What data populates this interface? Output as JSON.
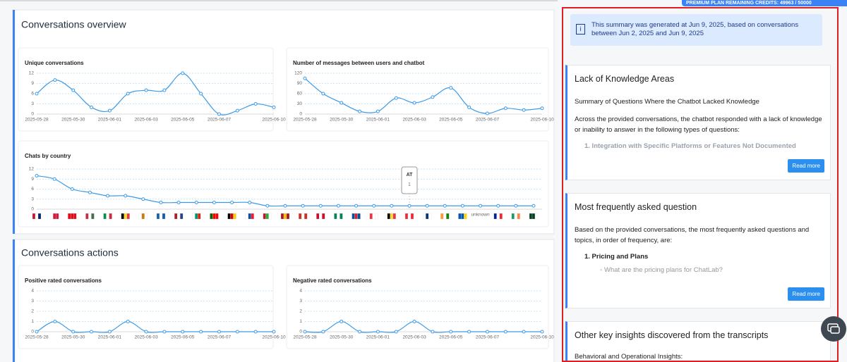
{
  "header": {
    "credits": "PREMIUM PLAN REMAINING CREDITS: 49963 / 50000"
  },
  "sections": [
    "Conversations overview",
    "Conversations actions"
  ],
  "chart_data": [
    {
      "type": "line",
      "title": "Unique conversations",
      "categories": [
        "2025-05-28",
        null,
        "2025-05-30",
        null,
        "2025-06-01",
        null,
        "2025-06-03",
        null,
        "2025-06-05",
        null,
        "2025-06-07",
        null,
        null,
        "2025-06-10"
      ],
      "values": [
        6,
        10,
        7,
        2,
        1,
        6,
        7,
        7,
        12,
        6,
        0,
        1,
        3,
        2
      ],
      "color": "#3b9ae8",
      "ylim": [
        0,
        12
      ],
      "yticks": [
        0,
        3,
        6,
        9,
        12
      ],
      "grid": true
    },
    {
      "type": "line",
      "title": "Number of messages between users and chatbot",
      "categories": [
        "2025-05-28",
        null,
        "2025-05-30",
        null,
        "2025-06-01",
        null,
        "2025-06-03",
        null,
        "2025-06-05",
        null,
        "2025-06-07",
        null,
        null,
        "2025-06-10"
      ],
      "values": [
        105,
        60,
        33,
        8,
        8,
        47,
        33,
        50,
        77,
        20,
        2,
        17,
        12,
        17
      ],
      "color": "#3b9ae8",
      "ylim": [
        0,
        120
      ],
      "yticks": [
        0,
        30,
        60,
        90,
        120
      ],
      "grid": true
    },
    {
      "type": "line",
      "title": "Chats by country",
      "categories": [
        null,
        null,
        null,
        null,
        null,
        null,
        null,
        null,
        null,
        null,
        null,
        null,
        null,
        null,
        null,
        null,
        null,
        null,
        null,
        null,
        null,
        null,
        null,
        null,
        null,
        "unknown",
        null,
        null,
        null
      ],
      "values": [
        10,
        9,
        6,
        5,
        4,
        4,
        3,
        2,
        2,
        2,
        2,
        2,
        2,
        1,
        1,
        1,
        1,
        1,
        1,
        1,
        1,
        1,
        1,
        1,
        1,
        1,
        1,
        1,
        1
      ],
      "color": "#3b9ae8",
      "ylim": [
        0,
        12
      ],
      "yticks": [
        0,
        3,
        6,
        9,
        12
      ],
      "grid": true,
      "tooltip": {
        "index": 21,
        "label": "AT",
        "value": 1
      }
    },
    {
      "type": "line",
      "title": "Positive rated conversations",
      "categories": [
        "2025-05-28",
        null,
        "2025-05-30",
        null,
        "2025-06-01",
        null,
        "2025-06-03",
        null,
        "2025-06-05",
        null,
        "2025-06-07",
        null,
        null,
        "2025-06-10"
      ],
      "values": [
        0,
        1,
        0,
        0,
        0,
        1,
        0,
        0,
        0,
        0,
        0,
        0,
        0,
        0
      ],
      "color": "#3b9ae8",
      "ylim": [
        0,
        4
      ],
      "yticks": [
        0,
        1,
        2,
        3,
        4
      ],
      "grid": true
    },
    {
      "type": "line",
      "title": "Negative rated conversations",
      "categories": [
        "2025-05-28",
        null,
        "2025-05-30",
        null,
        "2025-06-01",
        null,
        "2025-06-03",
        null,
        "2025-06-05",
        null,
        "2025-06-07",
        null,
        null,
        "2025-06-10"
      ],
      "values": [
        0,
        0,
        1,
        0,
        0,
        0,
        1,
        0,
        0,
        0,
        0,
        0,
        0,
        0
      ],
      "color": "#3b9ae8",
      "ylim": [
        0,
        4
      ],
      "yticks": [
        0,
        1,
        2,
        3,
        4
      ],
      "grid": true
    }
  ],
  "summary": {
    "notice": "This summary was generated at Jun 9, 2025, based on conversations between Jun 2, 2025 and Jun 9, 2025",
    "cards": [
      {
        "title": "Lack of Knowledge Areas",
        "paragraphs": [
          "Summary of Questions Where the Chatbot Lacked Knowledge",
          "Across the provided conversations, the chatbot responded with a lack of knowledge or inability to answer in the following types of questions:"
        ],
        "list_item": "1. Integration with Specific Platforms or Features Not Documented",
        "button": "Read more"
      },
      {
        "title": "Most frequently asked question",
        "paragraphs": [
          "Based on the provided conversations, the most frequently asked questions and topics, in order of frequency, are:"
        ],
        "list_item": "1. Pricing and Plans",
        "sub_item": "What are the pricing plans for ChatLab?",
        "button": "Read more"
      },
      {
        "title": "Other key insights discovered from the transcripts",
        "paragraphs": [
          "Behavioral and Operational Insights:"
        ]
      }
    ]
  }
}
